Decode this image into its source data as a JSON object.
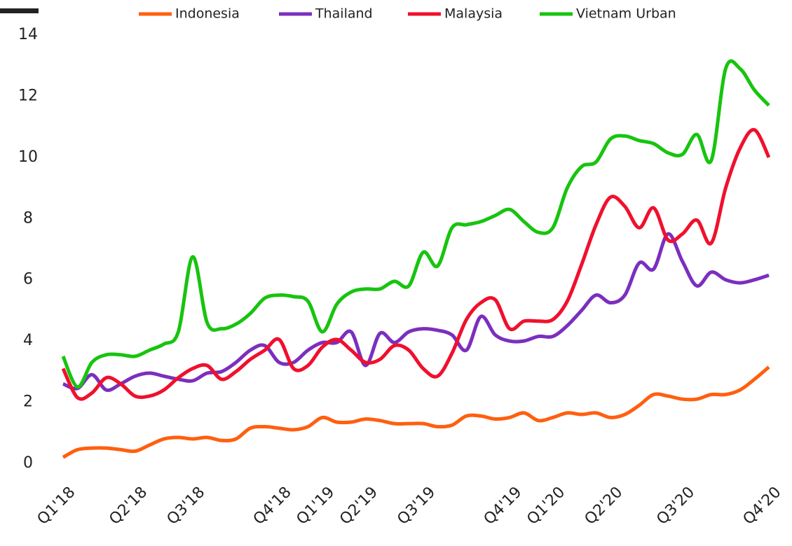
{
  "chart_data": {
    "type": "line",
    "categories": [
      "Q1'18",
      null,
      null,
      null,
      null,
      "Q2'18",
      null,
      null,
      null,
      "Q3'18",
      null,
      null,
      null,
      null,
      null,
      "Q4'18",
      null,
      null,
      "Q1'19",
      null,
      null,
      "Q2'19",
      null,
      null,
      null,
      "Q3'19",
      null,
      null,
      null,
      null,
      null,
      "Q4'19",
      null,
      null,
      "Q1'20",
      null,
      null,
      null,
      "Q2'20",
      null,
      null,
      null,
      null,
      "Q3'20",
      null,
      null,
      null,
      null,
      null,
      "Q4'20"
    ],
    "series": [
      {
        "name": "Indonesia",
        "color": "#ff5f0f",
        "values": [
          0.2,
          0.45,
          0.5,
          0.5,
          0.45,
          0.4,
          0.6,
          0.8,
          0.85,
          0.8,
          0.85,
          0.75,
          0.8,
          1.15,
          1.2,
          1.15,
          1.1,
          1.2,
          1.5,
          1.35,
          1.35,
          1.45,
          1.4,
          1.3,
          1.3,
          1.3,
          1.2,
          1.25,
          1.55,
          1.55,
          1.45,
          1.5,
          1.65,
          1.4,
          1.5,
          1.65,
          1.6,
          1.65,
          1.5,
          1.6,
          1.9,
          2.25,
          2.2,
          2.1,
          2.1,
          2.25,
          2.25,
          2.4,
          2.75,
          3.15
        ]
      },
      {
        "name": "Thailand",
        "color": "#7b2fbe",
        "values": [
          2.6,
          2.45,
          2.9,
          2.4,
          2.6,
          2.85,
          2.95,
          2.85,
          2.75,
          2.7,
          2.95,
          3.0,
          3.3,
          3.7,
          3.85,
          3.3,
          3.3,
          3.7,
          3.95,
          3.95,
          4.3,
          3.2,
          4.25,
          3.95,
          4.3,
          4.4,
          4.35,
          4.2,
          3.7,
          4.8,
          4.2,
          4.0,
          4.0,
          4.15,
          4.15,
          4.5,
          5.0,
          5.5,
          5.25,
          5.5,
          6.55,
          6.35,
          7.5,
          6.6,
          5.8,
          6.25,
          6.0,
          5.9,
          6.0,
          6.15
        ]
      },
      {
        "name": "Malaysia",
        "color": "#f0102d",
        "values": [
          3.1,
          2.15,
          2.3,
          2.8,
          2.6,
          2.2,
          2.2,
          2.4,
          2.8,
          3.1,
          3.2,
          2.75,
          3.0,
          3.4,
          3.7,
          4.05,
          3.1,
          3.2,
          3.8,
          4.05,
          3.7,
          3.3,
          3.4,
          3.85,
          3.7,
          3.1,
          2.85,
          3.6,
          4.7,
          5.25,
          5.35,
          4.4,
          4.65,
          4.65,
          4.7,
          5.3,
          6.5,
          7.8,
          8.7,
          8.4,
          7.7,
          8.35,
          7.3,
          7.5,
          7.95,
          7.2,
          9.0,
          10.3,
          10.9,
          10.0
        ]
      },
      {
        "name": "Vietnam Urban",
        "color": "#17c40f",
        "values": [
          3.5,
          2.5,
          3.3,
          3.55,
          3.55,
          3.5,
          3.7,
          3.9,
          4.3,
          6.75,
          4.6,
          4.4,
          4.55,
          4.9,
          5.4,
          5.5,
          5.45,
          5.3,
          4.3,
          5.2,
          5.6,
          5.7,
          5.7,
          5.95,
          5.8,
          6.9,
          6.45,
          7.7,
          7.8,
          7.9,
          8.1,
          8.3,
          7.9,
          7.55,
          7.7,
          9.0,
          9.7,
          9.85,
          10.6,
          10.7,
          10.55,
          10.45,
          10.15,
          10.1,
          10.75,
          9.9,
          12.9,
          12.9,
          12.2,
          11.7
        ]
      }
    ],
    "ylim": [
      0,
      14
    ],
    "yticks": [
      0,
      2,
      4,
      6,
      8,
      10,
      12,
      14
    ],
    "grid": false
  }
}
